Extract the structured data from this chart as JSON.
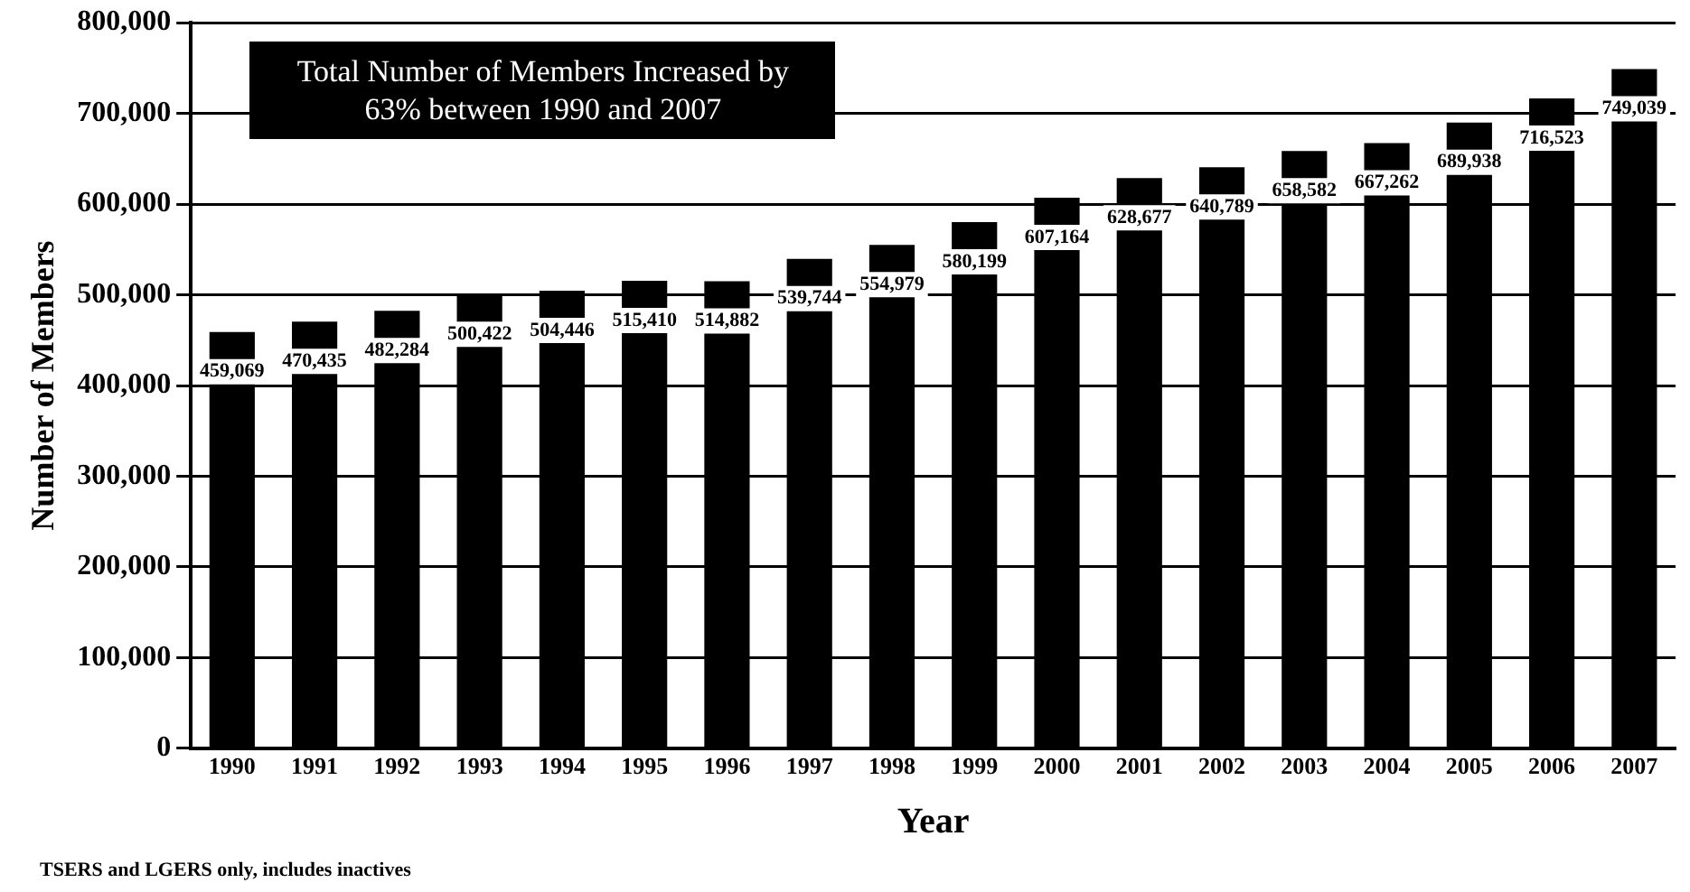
{
  "chart_data": {
    "type": "bar",
    "xlabel": "Year",
    "ylabel": "Number of Members",
    "categories": [
      "1990",
      "1991",
      "1992",
      "1993",
      "1994",
      "1995",
      "1996",
      "1997",
      "1998",
      "1999",
      "2000",
      "2001",
      "2002",
      "2003",
      "2004",
      "2005",
      "2006",
      "2007"
    ],
    "values": [
      459069,
      470435,
      482284,
      500422,
      504446,
      515410,
      514882,
      539744,
      554979,
      580199,
      607164,
      628677,
      640789,
      658582,
      667262,
      689938,
      716523,
      749039
    ],
    "color": "#000000",
    "ylim": [
      0,
      800000
    ],
    "yticks": [
      {
        "value": 0,
        "label": "0"
      },
      {
        "value": 100000,
        "label": "100,000"
      },
      {
        "value": 200000,
        "label": "200,000"
      },
      {
        "value": 300000,
        "label": "300,000"
      },
      {
        "value": 400000,
        "label": "400,000"
      },
      {
        "value": 500000,
        "label": "500,000"
      },
      {
        "value": 600000,
        "label": "600,000"
      },
      {
        "value": 700000,
        "label": "700,000"
      },
      {
        "value": 800000,
        "label": "800,000"
      }
    ],
    "grid": "y",
    "legend": false,
    "value_labels": [
      "459,069",
      "470,435",
      "482,284",
      "500,422",
      "504,446",
      "515,410",
      "514,882",
      "539,744",
      "554,979",
      "580,199",
      "607,164",
      "628,677",
      "640,789",
      "658,582",
      "667,262",
      "689,938",
      "716,523",
      "749,039"
    ],
    "annotations": [
      "Total Number of Members Increased by 63% between 1990 and 2007",
      "TSERS and LGERS only, includes inactives"
    ]
  }
}
